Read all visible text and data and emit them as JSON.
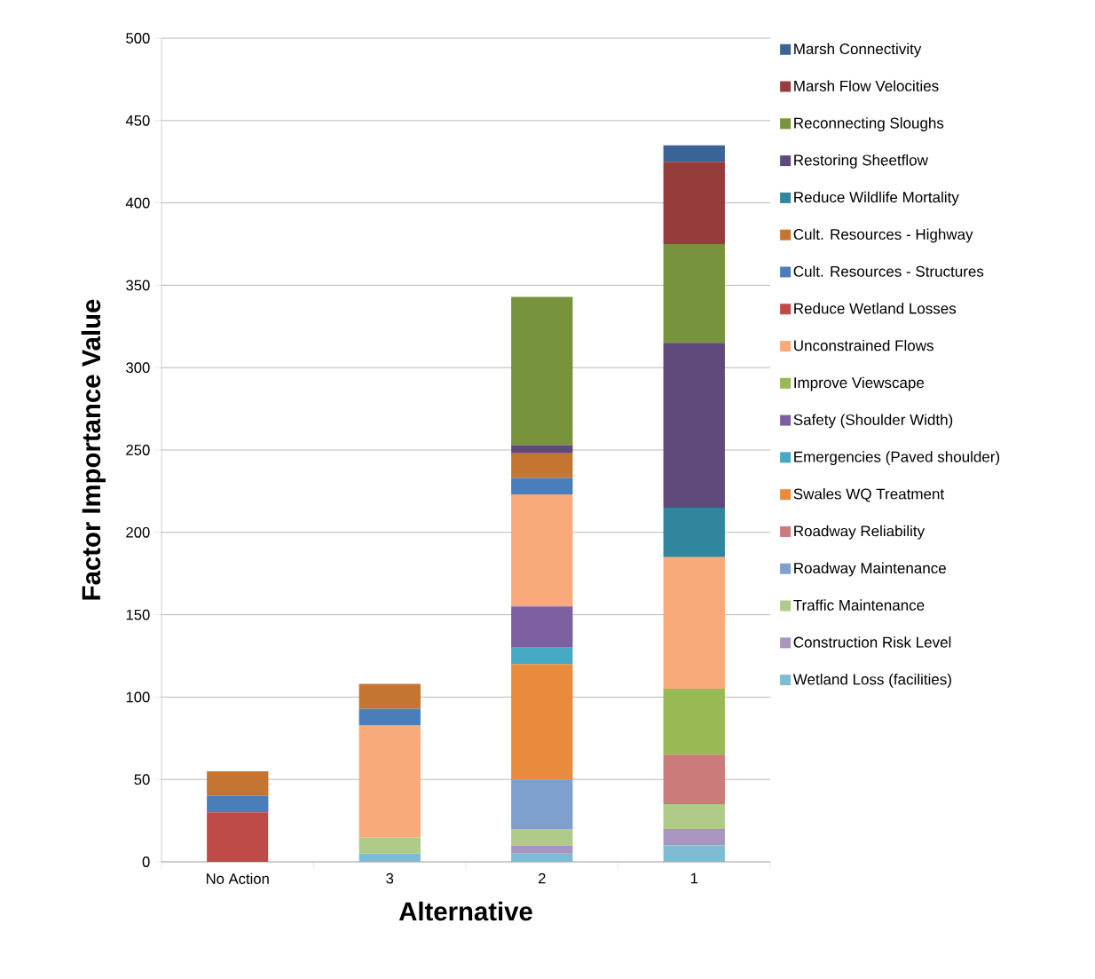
{
  "chart_data": {
    "type": "bar",
    "stacked": true,
    "xlabel": "Alternative",
    "ylabel": "Factor Importance Value",
    "categories": [
      "No Action",
      "3",
      "2",
      "1"
    ],
    "ylim": [
      0,
      500
    ],
    "yticks": [
      0,
      50,
      100,
      150,
      200,
      250,
      300,
      350,
      400,
      450,
      500
    ],
    "grid": "y",
    "legend": "right",
    "series": [
      {
        "name": "Wetland Loss (facilities)",
        "color": "#7fbcd4",
        "values": [
          0,
          5,
          5,
          10
        ]
      },
      {
        "name": "Construction Risk Level",
        "color": "#a996c0",
        "values": [
          0,
          0,
          5,
          10
        ]
      },
      {
        "name": "Traffic Maintenance",
        "color": "#b0cb87",
        "values": [
          0,
          10,
          10,
          15
        ]
      },
      {
        "name": "Roadway Maintenance",
        "color": "#7f9fcf",
        "values": [
          0,
          0,
          30,
          0
        ]
      },
      {
        "name": "Roadway Reliability",
        "color": "#cb7b79",
        "values": [
          0,
          0,
          0,
          30
        ]
      },
      {
        "name": "Swales WQ Treatment",
        "color": "#e88b3d",
        "values": [
          0,
          0,
          70,
          0
        ]
      },
      {
        "name": "Emergencies (Paved shoulder)",
        "color": "#46aac5",
        "values": [
          0,
          0,
          10,
          0
        ]
      },
      {
        "name": "Safety (Shoulder Width)",
        "color": "#7d60a0",
        "values": [
          0,
          0,
          25,
          0
        ]
      },
      {
        "name": "Improve Viewscape",
        "color": "#98b954",
        "values": [
          0,
          0,
          0,
          40
        ]
      },
      {
        "name": "Unconstrained Flows",
        "color": "#f8aa7b",
        "values": [
          0,
          68,
          68,
          80
        ]
      },
      {
        "name": "Reduce Wetland Losses",
        "color": "#be4b48",
        "values": [
          30,
          0,
          0,
          0
        ]
      },
      {
        "name": "Cult. Resources - Structures",
        "color": "#4a7ebb",
        "values": [
          10,
          10,
          10,
          0
        ]
      },
      {
        "name": "Cult. Resources -  Highway",
        "color": "#c47532",
        "values": [
          15,
          15,
          15,
          0
        ]
      },
      {
        "name": "Reduce Wildlife Mortality",
        "color": "#31859c",
        "values": [
          0,
          0,
          0,
          30
        ]
      },
      {
        "name": "Restoring Sheetflow",
        "color": "#604a7b",
        "values": [
          0,
          0,
          5,
          100
        ]
      },
      {
        "name": "Reconnecting Sloughs",
        "color": "#77933c",
        "values": [
          0,
          0,
          90,
          60
        ]
      },
      {
        "name": "Marsh Flow Velocities",
        "color": "#963c3a",
        "values": [
          0,
          0,
          0,
          50
        ]
      },
      {
        "name": "Marsh Connectivity",
        "color": "#3b6496",
        "values": [
          0,
          0,
          0,
          10
        ]
      }
    ]
  }
}
